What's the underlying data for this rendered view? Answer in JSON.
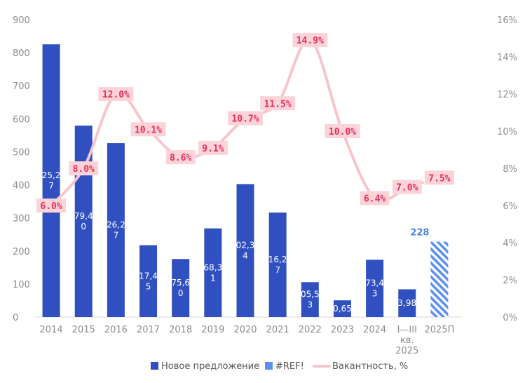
{
  "chart_data": {
    "type": "bar",
    "categories": [
      "2014",
      "2015",
      "2016",
      "2017",
      "2018",
      "2019",
      "2020",
      "2021",
      "2022",
      "2023",
      "2024",
      "I—III кв. 2025",
      "2025П"
    ],
    "category_lines": [
      [
        "2014"
      ],
      [
        "2015"
      ],
      [
        "2016"
      ],
      [
        "2017"
      ],
      [
        "2018"
      ],
      [
        "2019"
      ],
      [
        "2020"
      ],
      [
        "2021"
      ],
      [
        "2022"
      ],
      [
        "2023"
      ],
      [
        "2024"
      ],
      [
        "I—III",
        "кв.",
        "2025"
      ],
      [
        "2025П"
      ]
    ],
    "series": [
      {
        "name": "Новое предложение",
        "kind": "bar",
        "color": "#3050c0",
        "values": [
          825.27,
          579.4,
          526.27,
          217.45,
          175.6,
          268.31,
          402.34,
          316.27,
          105.53,
          50.65,
          173.43,
          83.98,
          null
        ],
        "labels": [
          [
            "25,2",
            "7"
          ],
          [
            "79,4",
            "0"
          ],
          [
            "26,2",
            "7"
          ],
          [
            "17,4",
            "5"
          ],
          [
            "75,6",
            "0"
          ],
          [
            "68,3",
            "1"
          ],
          [
            "02,3",
            "4"
          ],
          [
            "16,2",
            "7"
          ],
          [
            "05,5",
            "3"
          ],
          [
            "0,65"
          ],
          [
            "73,4",
            "3"
          ],
          [
            "3,98"
          ],
          []
        ]
      },
      {
        "name": "#REF!",
        "kind": "bar-hatched",
        "color": "#5b8ff0",
        "values": [
          null,
          null,
          null,
          null,
          null,
          null,
          null,
          null,
          null,
          null,
          null,
          null,
          228
        ],
        "value_label": "228"
      },
      {
        "name": "Вакантность, %",
        "kind": "line",
        "axis": "right",
        "color": "#f7c6cc",
        "x": [
          "2014",
          "2015",
          "2016",
          "2017",
          "2018",
          "2019",
          "2020",
          "2021",
          "2022",
          "2023",
          "2024",
          "I—III кв. 2025",
          "2025П"
        ],
        "values": [
          6.0,
          8.0,
          12.0,
          10.1,
          8.6,
          9.1,
          10.7,
          11.5,
          14.9,
          10.0,
          6.4,
          7.0,
          7.5
        ],
        "labels": [
          "6.0%",
          "8.0%",
          "12.0%",
          "10.1%",
          "8.6%",
          "9.1%",
          "10.7%",
          "11.5%",
          "14.9%",
          "10.0%",
          "6.4%",
          "7.0%",
          "7.5%"
        ],
        "dotted_last_segment": true
      }
    ],
    "y_left": {
      "min": 0,
      "max": 900,
      "ticks": [
        "0",
        "100",
        "200",
        "300",
        "400",
        "500",
        "600",
        "700",
        "800",
        "900"
      ]
    },
    "y_right": {
      "min": 0,
      "max": 16,
      "ticks": [
        "0%",
        "2%",
        "4%",
        "6%",
        "8%",
        "10%",
        "12%",
        "14%",
        "16%"
      ]
    },
    "title": "",
    "xlabel": "",
    "ylabel": "",
    "grid": false,
    "legend_position": "bottom",
    "colors": {
      "bar": "#3050c0",
      "hatched": "#5b8ff0",
      "line": "#f7c6cc",
      "label_bg": "#fbd3d8",
      "label_text": "#e8305a",
      "axis_text": "#8c8c8c"
    }
  }
}
